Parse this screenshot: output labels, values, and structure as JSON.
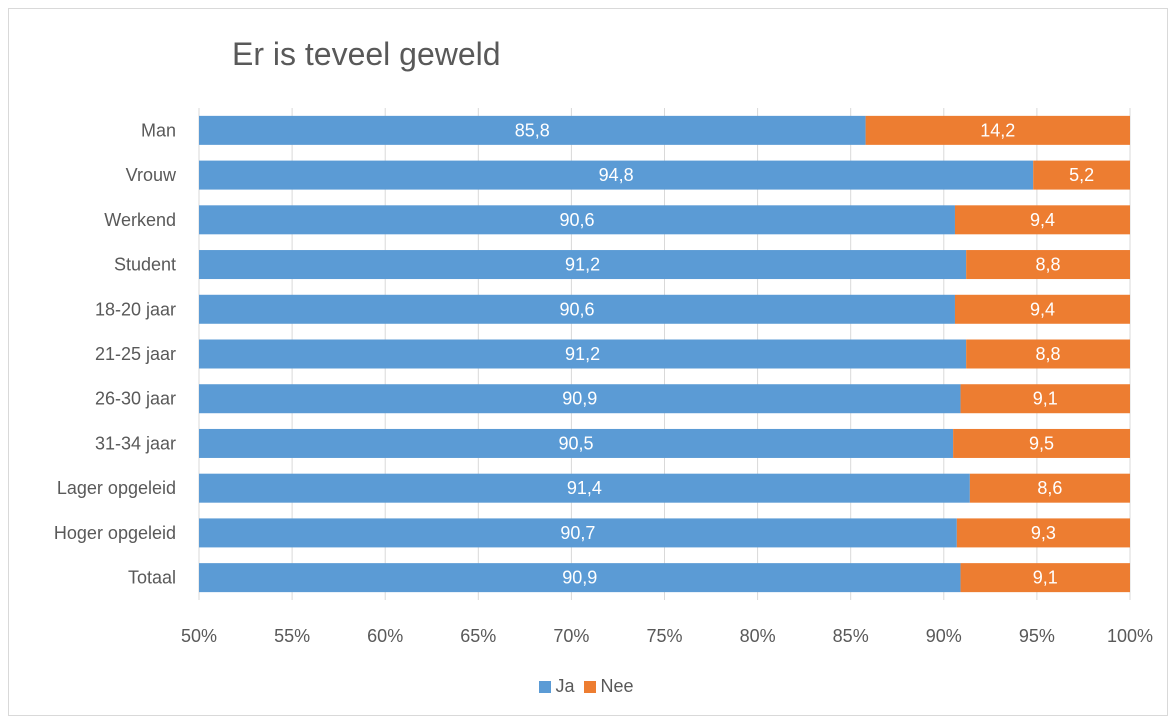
{
  "chart_data": {
    "type": "bar",
    "orientation": "horizontal",
    "stacked": "percent",
    "title": "Er is teveel geweld",
    "xlabel": "",
    "ylabel": "",
    "xlim": [
      50,
      100
    ],
    "x_ticks": [
      "50%",
      "55%",
      "60%",
      "65%",
      "70%",
      "75%",
      "80%",
      "85%",
      "90%",
      "95%",
      "100%"
    ],
    "x_tick_values": [
      50,
      55,
      60,
      65,
      70,
      75,
      80,
      85,
      90,
      95,
      100
    ],
    "grid": "vertical",
    "legend_position": "bottom",
    "categories": [
      "Man",
      "Vrouw",
      "Werkend",
      "Student",
      "18-20 jaar",
      "21-25 jaar",
      "26-30 jaar",
      "31-34 jaar",
      "Lager opgeleid",
      "Hoger opgeleid",
      "Totaal"
    ],
    "series": [
      {
        "name": "Ja",
        "color": "#5B9BD5",
        "values": [
          85.8,
          94.8,
          90.6,
          91.2,
          90.6,
          91.2,
          90.9,
          90.5,
          91.4,
          90.7,
          90.9
        ],
        "labels": [
          "85,8",
          "94,8",
          "90,6",
          "91,2",
          "90,6",
          "91,2",
          "90,9",
          "90,5",
          "91,4",
          "90,7",
          "90,9"
        ]
      },
      {
        "name": "Nee",
        "color": "#ED7D31",
        "values": [
          14.2,
          5.2,
          9.4,
          8.8,
          9.4,
          8.8,
          9.1,
          9.5,
          8.6,
          9.3,
          9.1
        ],
        "labels": [
          "14,2",
          "5,2",
          "9,4",
          "8,8",
          "9,4",
          "8,8",
          "9,1",
          "9,5",
          "8,6",
          "9,3",
          "9,1"
        ]
      }
    ]
  }
}
